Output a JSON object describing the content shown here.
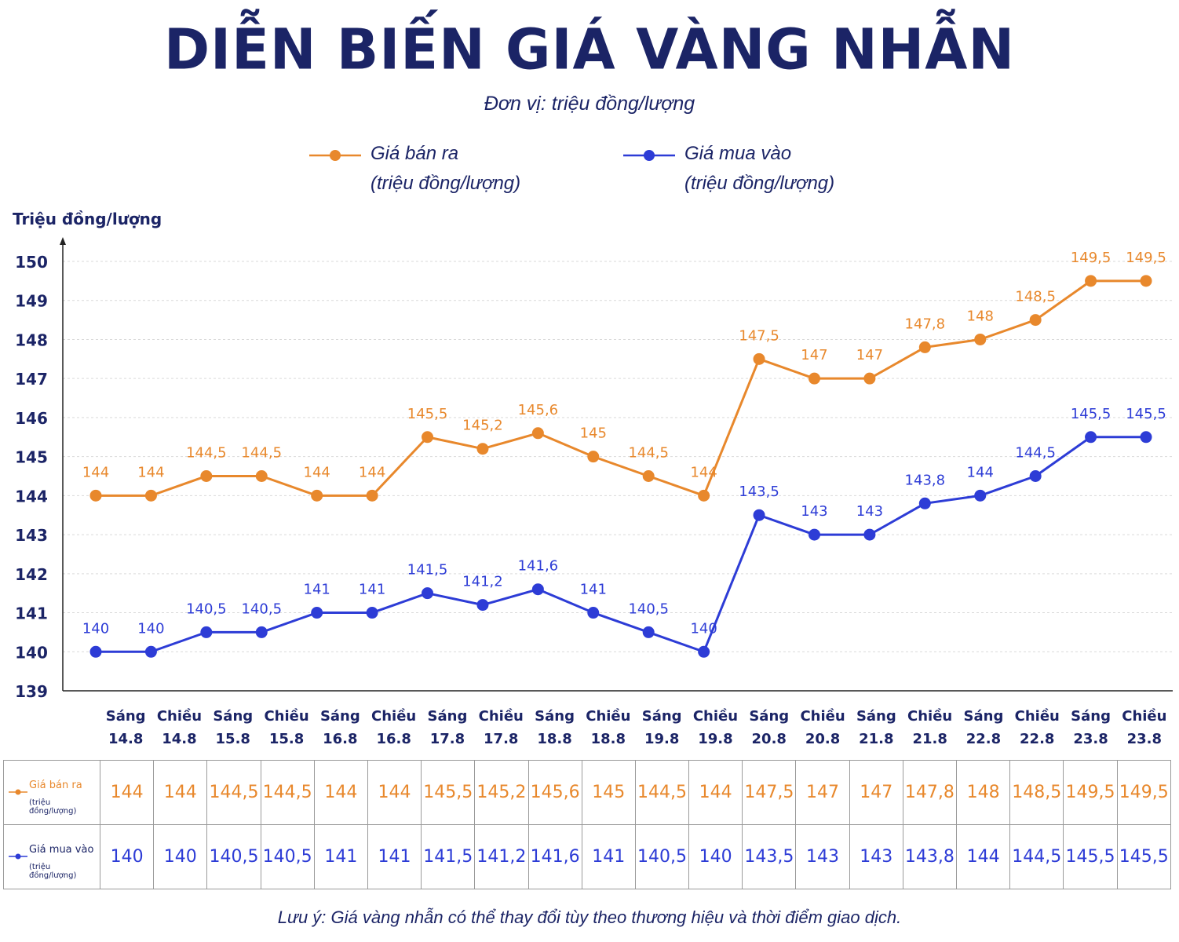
{
  "title": "DIỄN BIẾN GIÁ VÀNG NHẪN",
  "subtitle": "Đơn vị: triệu đồng/lượng",
  "note": "Lưu ý: Giá vàng nhẫn có thể thay đổi tùy theo thương hiệu và thời điểm giao dịch.",
  "legend": {
    "sell": {
      "name": "Giá bán ra",
      "unit": "(triệu đồng/lượng)"
    },
    "buy": {
      "name": "Giá mua vào",
      "unit": "(triệu đồng/lượng)"
    }
  },
  "table_row_heads": {
    "sell": {
      "name": "Giá bán ra",
      "unit": "(triệu đồng/lượng)"
    },
    "buy": {
      "name": "Giá mua vào",
      "unit": "(triệu đồng/lượng)"
    }
  },
  "colors": {
    "sell": "#e8882c",
    "buy": "#2d3cd6",
    "text": "#1b2466",
    "grid": "#d9d9d9"
  },
  "chart_data": {
    "type": "line",
    "ylabel": "Triệu đồng/lượng",
    "ylim": [
      139,
      150
    ],
    "yticks": [
      139,
      140,
      141,
      142,
      143,
      144,
      145,
      146,
      147,
      148,
      149,
      150
    ],
    "grid": true,
    "legend_position": "top",
    "categories": [
      [
        "Sáng",
        "14.8"
      ],
      [
        "Chiều",
        "14.8"
      ],
      [
        "Sáng",
        "15.8"
      ],
      [
        "Chiều",
        "15.8"
      ],
      [
        "Sáng",
        "16.8"
      ],
      [
        "Chiều",
        "16.8"
      ],
      [
        "Sáng",
        "17.8"
      ],
      [
        "Chiều",
        "17.8"
      ],
      [
        "Sáng",
        "18.8"
      ],
      [
        "Chiều",
        "18.8"
      ],
      [
        "Sáng",
        "19.8"
      ],
      [
        "Chiều",
        "19.8"
      ],
      [
        "Sáng",
        "20.8"
      ],
      [
        "Chiều",
        "20.8"
      ],
      [
        "Sáng",
        "21.8"
      ],
      [
        "Chiều",
        "21.8"
      ],
      [
        "Sáng",
        "22.8"
      ],
      [
        "Chiều",
        "22.8"
      ],
      [
        "Sáng",
        "23.8"
      ],
      [
        "Chiều",
        "23.8"
      ]
    ],
    "series": [
      {
        "name": "Giá bán ra",
        "values": [
          144,
          144,
          144.5,
          144.5,
          144,
          144,
          145.5,
          145.2,
          145.6,
          145,
          144.5,
          144,
          147.5,
          147,
          147,
          147.8,
          148,
          148.5,
          149.5,
          149.5
        ],
        "labels": [
          "144",
          "144",
          "144,5",
          "144,5",
          "144",
          "144",
          "145,5",
          "145,2",
          "145,6",
          "145",
          "144,5",
          "144",
          "147,5",
          "147",
          "147",
          "147,8",
          "148",
          "148,5",
          "149,5",
          "149,5"
        ]
      },
      {
        "name": "Giá mua vào",
        "values": [
          140,
          140,
          140.5,
          140.5,
          141,
          141,
          141.5,
          141.2,
          141.6,
          141,
          140.5,
          140,
          143.5,
          143,
          143,
          143.8,
          144,
          144.5,
          145.5,
          145.5
        ],
        "labels": [
          "140",
          "140",
          "140,5",
          "140,5",
          "141",
          "141",
          "141,5",
          "141,2",
          "141,6",
          "141",
          "140,5",
          "140",
          "143,5",
          "143",
          "143",
          "143,8",
          "144",
          "144,5",
          "145,5",
          "145,5"
        ]
      }
    ]
  }
}
